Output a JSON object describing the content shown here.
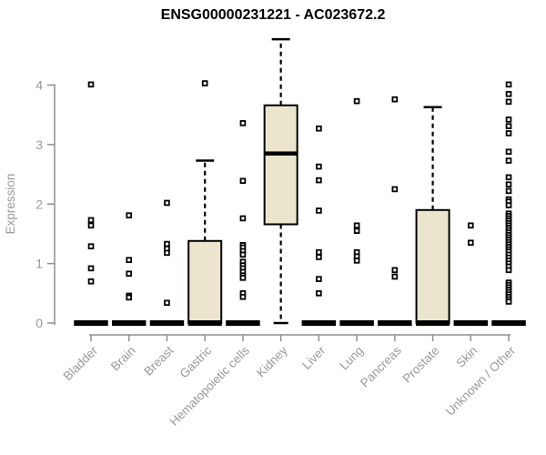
{
  "chart_data": {
    "type": "box",
    "title": "ENSG00000231221 - AC023672.2",
    "xlabel": "",
    "ylabel": "Expression",
    "ylim": [
      0,
      4.9
    ],
    "yticks": [
      0,
      1,
      2,
      3,
      4
    ],
    "grid": false,
    "legend": "none",
    "colors": {
      "box_fill": "#ece5cd",
      "box_border": "#000000",
      "median": "#000000",
      "whisker": "#000000",
      "outlier": "#000000",
      "axis": "#8f8f8f",
      "tick_label": "#999999",
      "title": "#000000",
      "background": "#ffffff"
    },
    "categories": [
      "Bladder",
      "Brain",
      "Breast",
      "Gastric",
      "Hematopoietic cells",
      "Kidney",
      "Liver",
      "Lung",
      "Pancreas",
      "Prostate",
      "Skin",
      "Unknown / Other"
    ],
    "series": [
      {
        "name": "Bladder",
        "low": 0,
        "q1": 0,
        "median": 0,
        "q3": 0,
        "high": 0,
        "outliers": [
          4.01,
          1.73,
          1.64,
          1.29,
          0.92,
          0.7
        ]
      },
      {
        "name": "Brain",
        "low": 0,
        "q1": 0,
        "median": 0,
        "q3": 0,
        "high": 0,
        "outliers": [
          1.81,
          1.06,
          0.83,
          0.46,
          0.43
        ]
      },
      {
        "name": "Breast",
        "low": 0,
        "q1": 0,
        "median": 0,
        "q3": 0,
        "high": 0,
        "outliers": [
          2.02,
          1.33,
          1.25,
          1.18,
          0.34
        ]
      },
      {
        "name": "Gastric",
        "low": 0,
        "q1": 0,
        "median": 0,
        "q3": 1.38,
        "high": 2.73,
        "outliers": [
          4.03
        ]
      },
      {
        "name": "Hematopoietic cells",
        "low": 0,
        "q1": 0,
        "median": 0,
        "q3": 0,
        "high": 0,
        "outliers": [
          3.36,
          2.39,
          1.76,
          1.31,
          1.27,
          1.21,
          1.15,
          1.03,
          0.97,
          0.92,
          0.86,
          0.8,
          0.76,
          0.5,
          0.44
        ]
      },
      {
        "name": "Kidney",
        "low": 0,
        "q1": 1.66,
        "median": 2.85,
        "q3": 3.66,
        "high": 4.77,
        "outliers": []
      },
      {
        "name": "Liver",
        "low": 0,
        "q1": 0,
        "median": 0,
        "q3": 0,
        "high": 0,
        "outliers": [
          3.27,
          2.63,
          2.4,
          1.89,
          1.19,
          1.11,
          0.74,
          0.5
        ]
      },
      {
        "name": "Lung",
        "low": 0,
        "q1": 0,
        "median": 0,
        "q3": 0,
        "high": 0,
        "outliers": [
          3.73,
          1.64,
          1.55,
          1.19,
          1.12,
          1.05
        ]
      },
      {
        "name": "Pancreas",
        "low": 0,
        "q1": 0,
        "median": 0,
        "q3": 0,
        "high": 0,
        "outliers": [
          3.76,
          2.25,
          0.89,
          0.78
        ]
      },
      {
        "name": "Prostate",
        "low": 0,
        "q1": 0,
        "median": 0,
        "q3": 1.9,
        "high": 3.63,
        "outliers": []
      },
      {
        "name": "Skin",
        "low": 0,
        "q1": 0,
        "median": 0,
        "q3": 0,
        "high": 0,
        "outliers": [
          1.64,
          1.35
        ]
      },
      {
        "name": "Unknown / Other",
        "low": 0,
        "q1": 0,
        "median": 0,
        "q3": 0,
        "high": 0,
        "outliers": [
          4.01,
          3.85,
          3.72,
          3.42,
          3.31,
          3.19,
          2.88,
          2.73,
          2.45,
          2.33,
          2.22,
          2.08,
          2.04,
          1.98,
          1.84,
          1.8,
          1.76,
          1.72,
          1.68,
          1.64,
          1.6,
          1.56,
          1.52,
          1.48,
          1.44,
          1.4,
          1.36,
          1.32,
          1.28,
          1.24,
          1.2,
          1.15,
          1.1,
          1.05,
          1.0,
          0.95,
          0.89,
          0.68,
          0.64,
          0.6,
          0.56,
          0.52,
          0.48,
          0.44,
          0.4,
          0.36
        ]
      }
    ]
  }
}
